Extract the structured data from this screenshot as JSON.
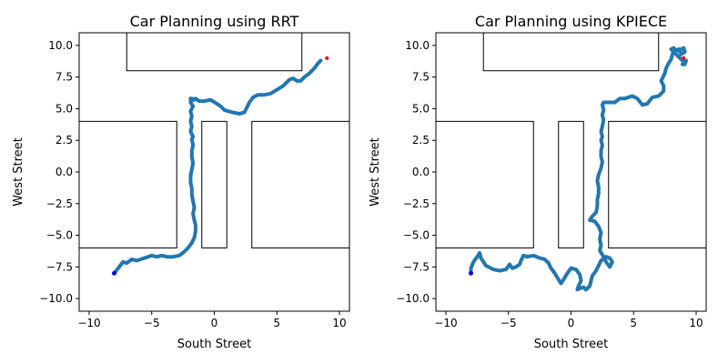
{
  "chart_data": [
    {
      "type": "line",
      "title": "Car Planning using RRT",
      "xlabel": "South Street",
      "ylabel": "West Street",
      "xlim": [
        -10.8,
        10.8
      ],
      "ylim": [
        -11,
        11
      ],
      "xticks": [
        -10,
        -5,
        0,
        5,
        10
      ],
      "yticks": [
        -10.0,
        -7.5,
        -5.0,
        -2.5,
        0.0,
        2.5,
        5.0,
        7.5,
        10.0
      ],
      "xtick_labels": [
        "−10",
        "−5",
        "0",
        "5",
        "10"
      ],
      "ytick_labels": [
        "−10.0",
        "−7.5",
        "−5.0",
        "−2.5",
        "0.0",
        "2.5",
        "5.0",
        "7.5",
        "10.0"
      ],
      "obstacles": [
        {
          "x": [
            -7,
            7
          ],
          "y": [
            8,
            11
          ]
        },
        {
          "x": [
            -11,
            -3
          ],
          "y": [
            -6,
            4
          ]
        },
        {
          "x": [
            -1,
            1
          ],
          "y": [
            -6,
            4
          ]
        },
        {
          "x": [
            3,
            11
          ],
          "y": [
            -6,
            4
          ]
        }
      ],
      "start": [
        -8,
        -8
      ],
      "goal": [
        9,
        9
      ],
      "colors": {
        "path": "#1f77b4",
        "start": "#0000ff",
        "goal": "#ff0000"
      },
      "series": [
        {
          "x": [
            -8.0,
            -7.6,
            -7.3,
            -7.0,
            -6.6,
            -6.2,
            -5.6,
            -5.0,
            -4.6,
            -4.2,
            -3.8,
            -3.3,
            -2.8,
            -2.4,
            -2.1,
            -1.8,
            -1.6,
            -1.5,
            -1.5,
            -1.6,
            -1.7,
            -1.6,
            -1.7,
            -1.8,
            -1.8,
            -1.9,
            -1.9,
            -1.8,
            -1.7,
            -1.8,
            -1.8,
            -1.7,
            -1.8,
            -1.7,
            -1.9,
            -1.8,
            -1.9,
            -1.8,
            -1.9,
            -1.7,
            -1.9,
            -1.8,
            -1.6,
            -1.9,
            -1.9,
            -1.7,
            -1.5,
            -1.2,
            -0.8,
            -0.3,
            0.2,
            0.5,
            0.8,
            1.1,
            1.5,
            2.0,
            2.4,
            2.6,
            2.8,
            3.1,
            3.5,
            4.0,
            4.5,
            5.0,
            5.5,
            6.0,
            6.3,
            6.6,
            6.9,
            7.2,
            7.6,
            8.0,
            8.3,
            8.5
          ],
          "y": [
            -8.0,
            -7.5,
            -7.1,
            -7.2,
            -6.9,
            -7.0,
            -6.8,
            -6.6,
            -6.7,
            -6.6,
            -6.7,
            -6.7,
            -6.6,
            -6.3,
            -6.0,
            -5.6,
            -5.2,
            -4.7,
            -4.2,
            -3.8,
            -3.3,
            -2.8,
            -2.3,
            -1.8,
            -1.3,
            -0.8,
            -0.3,
            0.2,
            0.7,
            1.2,
            1.7,
            2.1,
            2.6,
            2.8,
            3.2,
            3.6,
            4.0,
            4.4,
            4.8,
            5.2,
            5.5,
            5.8,
            5.7,
            5.7,
            5.8,
            5.7,
            5.8,
            5.6,
            5.6,
            5.7,
            5.4,
            5.2,
            4.9,
            4.8,
            4.7,
            4.6,
            4.7,
            5.1,
            5.5,
            5.9,
            6.1,
            6.1,
            6.2,
            6.5,
            6.8,
            7.3,
            7.4,
            7.2,
            7.2,
            7.5,
            7.8,
            8.2,
            8.6,
            8.8
          ]
        }
      ]
    },
    {
      "type": "line",
      "title": "Car Planning using KPIECE",
      "xlabel": "South Street",
      "ylabel": "West Street",
      "xlim": [
        -10.8,
        10.8
      ],
      "ylim": [
        -11,
        11
      ],
      "xticks": [
        -10,
        -5,
        0,
        5,
        10
      ],
      "yticks": [
        -10.0,
        -7.5,
        -5.0,
        -2.5,
        0.0,
        2.5,
        5.0,
        7.5,
        10.0
      ],
      "xtick_labels": [
        "−10",
        "−5",
        "0",
        "5",
        "10"
      ],
      "ytick_labels": [
        "−10.0",
        "−7.5",
        "−5.0",
        "−2.5",
        "0.0",
        "2.5",
        "5.0",
        "7.5",
        "10.0"
      ],
      "obstacles": [
        {
          "x": [
            -7,
            7
          ],
          "y": [
            8,
            11
          ]
        },
        {
          "x": [
            -11,
            -3
          ],
          "y": [
            -6,
            4
          ]
        },
        {
          "x": [
            -1,
            1
          ],
          "y": [
            -6,
            4
          ]
        },
        {
          "x": [
            3,
            11
          ],
          "y": [
            -6,
            4
          ]
        }
      ],
      "start": [
        -8,
        -8
      ],
      "goal": [
        9,
        9
      ],
      "colors": {
        "path": "#1f77b4",
        "start": "#0000ff",
        "goal": "#ff0000"
      },
      "series": [
        {
          "x": [
            -8.0,
            -8.0,
            -7.8,
            -7.5,
            -7.3,
            -7.2,
            -6.8,
            -6.2,
            -5.7,
            -5.2,
            -4.9,
            -4.7,
            -4.4,
            -4.1,
            -4.0,
            -3.8,
            -3.5,
            -3.0,
            -2.5,
            -2.1,
            -1.8,
            -1.6,
            -1.3,
            -1.0,
            -0.8,
            -0.6,
            -0.3,
            0.0,
            0.4,
            0.7,
            0.8,
            0.6,
            0.5,
            0.7,
            1.0,
            1.2,
            1.5,
            1.6,
            1.7,
            2.0,
            2.2,
            2.4,
            2.8,
            3.1,
            3.3,
            3.1,
            2.8,
            2.6,
            2.3,
            2.4,
            2.3,
            2.4,
            2.2,
            1.9,
            1.5,
            1.7,
            2.0,
            2.1,
            2.1,
            2.2,
            2.2,
            2.1,
            2.2,
            2.4,
            2.5,
            2.4,
            2.4,
            2.5,
            2.4,
            2.5,
            2.4,
            2.5,
            2.6,
            2.5,
            2.6,
            2.5,
            2.6,
            3.0,
            3.5,
            3.9,
            4.3,
            4.6,
            4.9,
            5.3,
            5.7,
            6.1,
            6.5,
            7.0,
            7.4,
            7.4,
            7.2,
            7.3,
            7.5,
            7.6,
            7.8,
            8.0,
            8.1,
            8.3,
            8.6,
            9.0,
            9.1,
            8.8,
            8.6,
            8.4,
            8.2,
            8.0,
            8.3,
            8.6,
            8.9,
            9.2,
            9.1,
            8.9
          ],
          "y": [
            -8.0,
            -7.6,
            -7.1,
            -6.7,
            -6.4,
            -6.8,
            -7.4,
            -7.7,
            -7.8,
            -7.7,
            -7.3,
            -7.6,
            -7.5,
            -7.3,
            -7.0,
            -6.6,
            -6.7,
            -6.6,
            -6.8,
            -6.9,
            -7.2,
            -7.6,
            -8.0,
            -8.5,
            -8.8,
            -8.5,
            -8.0,
            -7.6,
            -7.7,
            -8.1,
            -8.6,
            -9.0,
            -9.3,
            -9.2,
            -9.1,
            -9.3,
            -9.0,
            -8.6,
            -8.2,
            -7.8,
            -7.4,
            -7.0,
            -6.7,
            -6.8,
            -7.1,
            -7.5,
            -7.1,
            -6.7,
            -6.2,
            -5.8,
            -5.3,
            -4.8,
            -4.3,
            -3.9,
            -3.8,
            -3.5,
            -3.2,
            -2.7,
            -2.2,
            -1.7,
            -1.2,
            -0.7,
            -0.2,
            0.3,
            0.8,
            1.2,
            1.7,
            2.1,
            2.5,
            2.8,
            3.2,
            3.6,
            4.1,
            4.5,
            4.9,
            5.3,
            5.5,
            5.5,
            5.5,
            5.8,
            5.8,
            5.9,
            6.0,
            5.8,
            5.3,
            5.4,
            5.9,
            6.0,
            6.4,
            6.8,
            7.2,
            7.4,
            7.8,
            8.2,
            8.6,
            8.9,
            9.3,
            9.6,
            9.6,
            9.8,
            9.5,
            9.3,
            9.7,
            9.6,
            9.8,
            9.7,
            9.4,
            9.1,
            8.8,
            8.8,
            8.5,
            8.5
          ]
        }
      ]
    }
  ]
}
